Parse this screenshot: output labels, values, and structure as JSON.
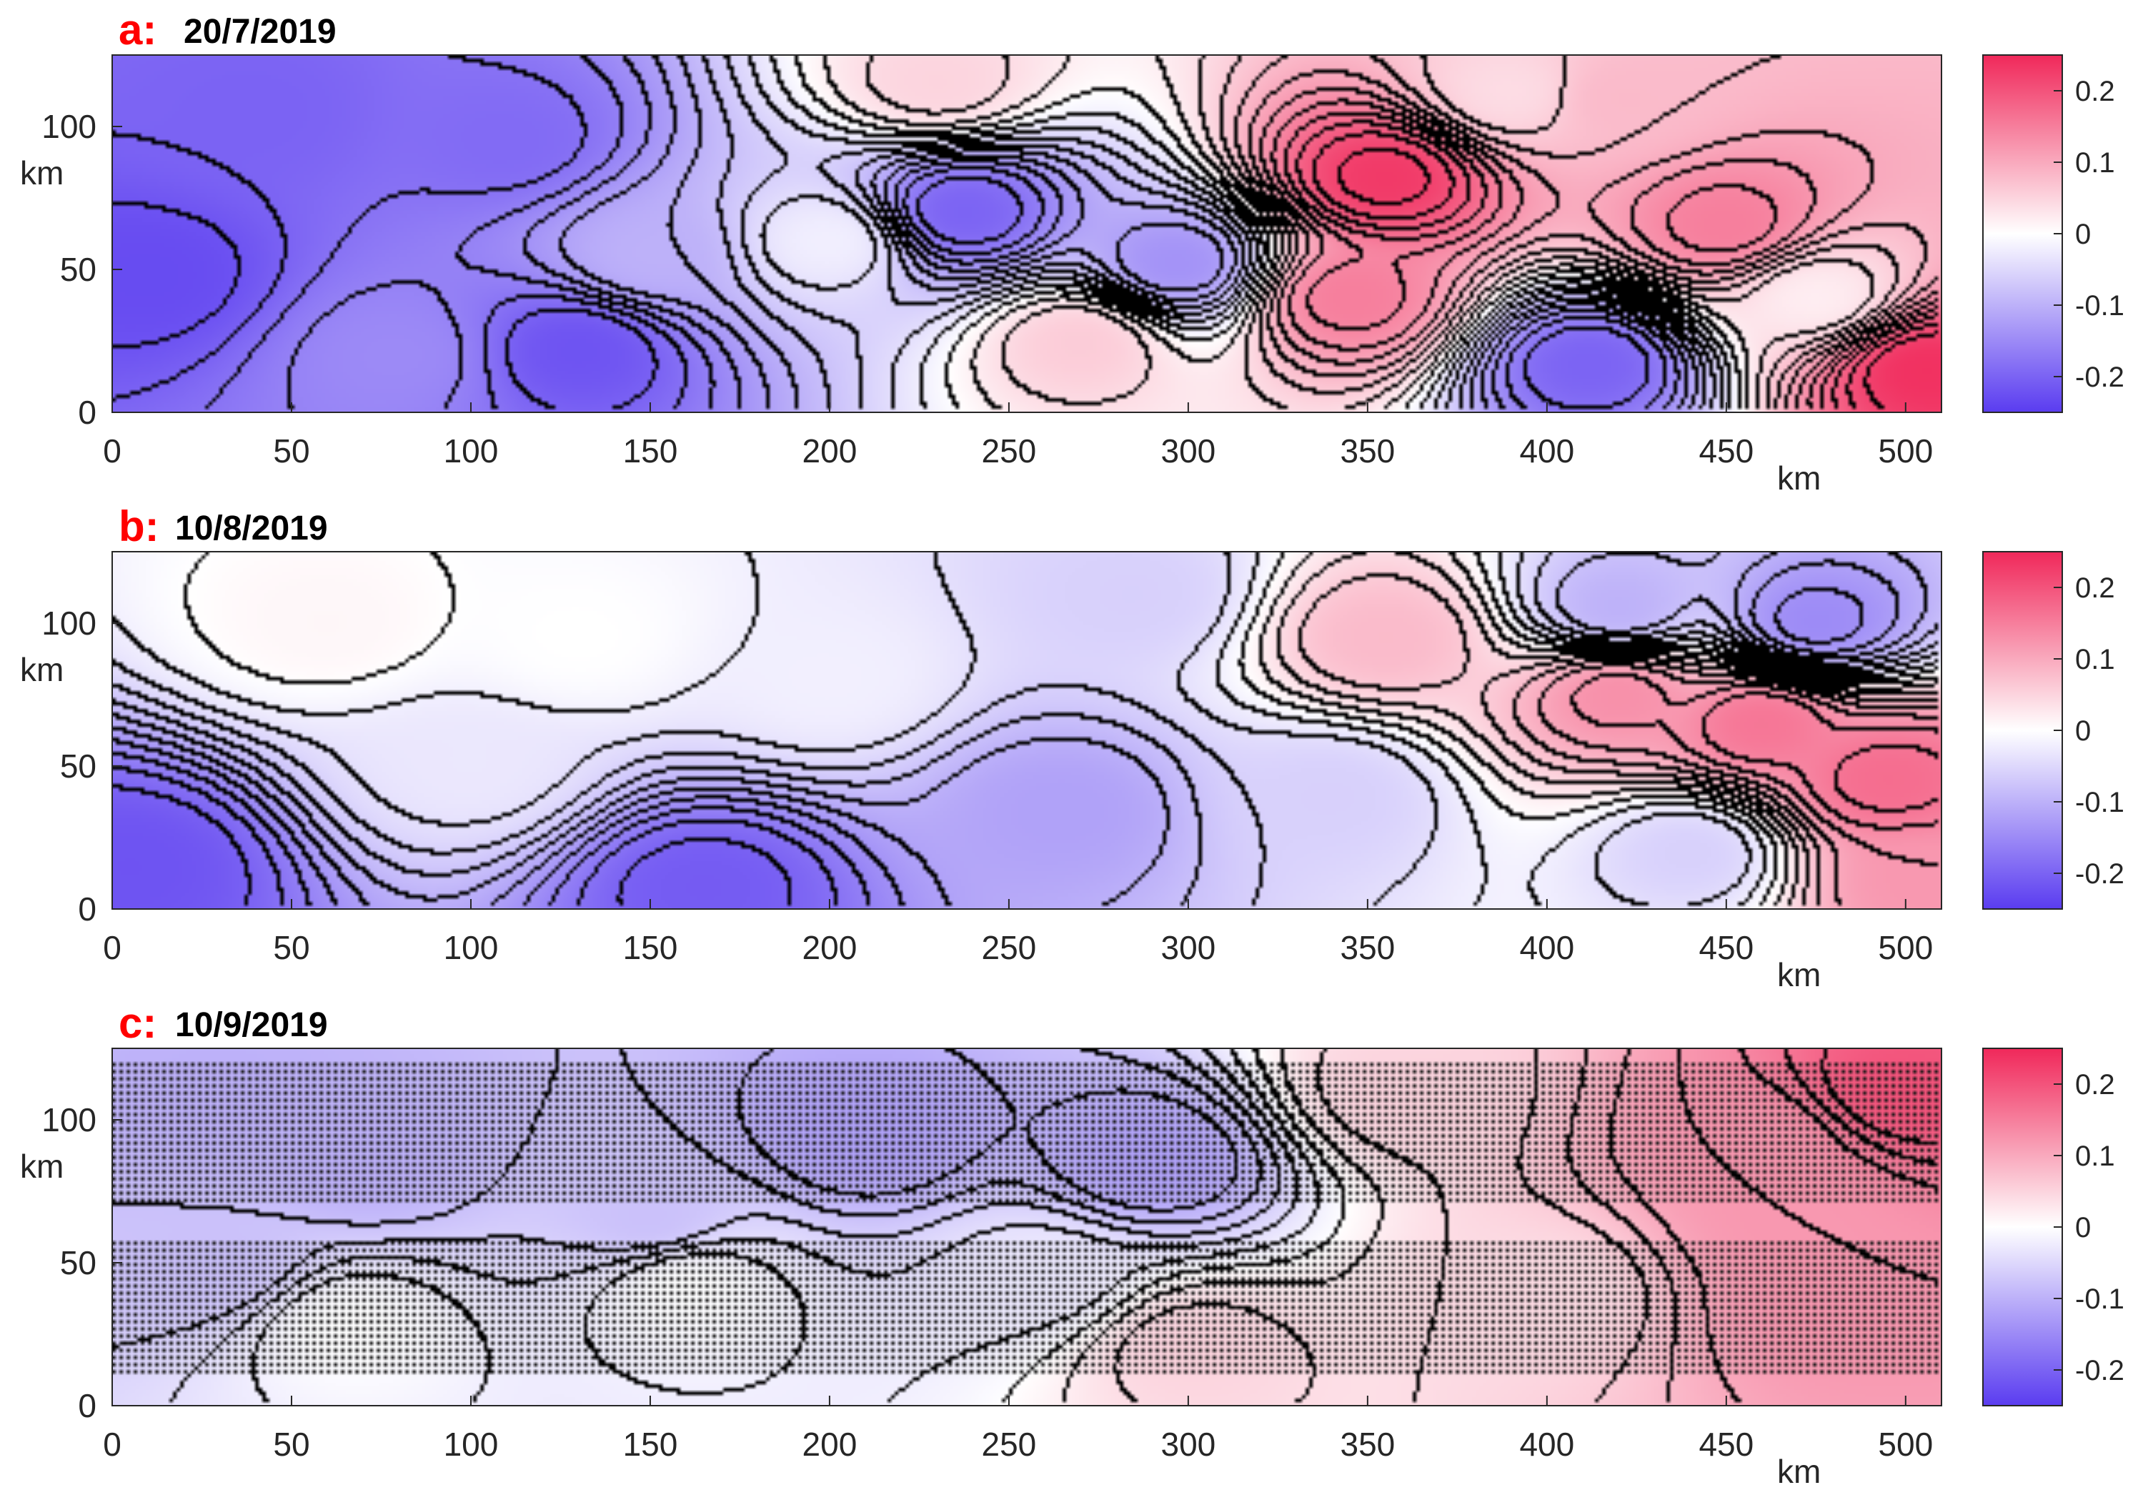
{
  "chart_data": [
    {
      "type": "heatmap",
      "panel_label": "a:",
      "title": "20/7/2019",
      "x_ticks": [
        0,
        50,
        100,
        150,
        200,
        250,
        300,
        350,
        400,
        450,
        500
      ],
      "x_unit": "km",
      "xlim": [
        0,
        510
      ],
      "y_ticks": [
        0,
        50,
        100
      ],
      "y_unit": "km",
      "ylim": [
        0,
        125
      ],
      "colorbar": {
        "ticks": [
          "0.2",
          "0.1",
          "0",
          "-0.1",
          "-0.2"
        ],
        "range": [
          -0.25,
          0.25
        ],
        "low_color": "#5a3cf0",
        "mid_color": "#ffffff",
        "high_color": "#f0285a"
      },
      "contours": true,
      "stippling": false,
      "features": [
        {
          "x": 10,
          "y": 48,
          "value": -0.23
        },
        {
          "x": 40,
          "y": 105,
          "value": -0.2
        },
        {
          "x": 110,
          "y": 95,
          "value": -0.19
        },
        {
          "x": 130,
          "y": 22,
          "value": -0.22
        },
        {
          "x": 150,
          "y": 55,
          "value": -0.1
        },
        {
          "x": 80,
          "y": 20,
          "value": -0.15
        },
        {
          "x": 200,
          "y": 60,
          "value": -0.02
        },
        {
          "x": 237,
          "y": 70,
          "value": -0.2
        },
        {
          "x": 297,
          "y": 52,
          "value": -0.14
        },
        {
          "x": 230,
          "y": 115,
          "value": 0.05
        },
        {
          "x": 270,
          "y": 25,
          "value": 0.06
        },
        {
          "x": 355,
          "y": 82,
          "value": 0.23
        },
        {
          "x": 345,
          "y": 40,
          "value": 0.15
        },
        {
          "x": 412,
          "y": 17,
          "value": -0.2
        },
        {
          "x": 450,
          "y": 65,
          "value": 0.15
        },
        {
          "x": 475,
          "y": 40,
          "value": 0.02
        },
        {
          "x": 505,
          "y": 15,
          "value": 0.24
        },
        {
          "x": 420,
          "y": 110,
          "value": 0.08
        },
        {
          "x": 390,
          "y": 112,
          "value": 0.04
        }
      ]
    },
    {
      "type": "heatmap",
      "panel_label": "b:",
      "title": "10/8/2019",
      "x_ticks": [
        0,
        50,
        100,
        150,
        200,
        250,
        300,
        350,
        400,
        450,
        500
      ],
      "x_unit": "km",
      "xlim": [
        0,
        510
      ],
      "y_ticks": [
        0,
        50,
        100
      ],
      "y_unit": "km",
      "ylim": [
        0,
        125
      ],
      "colorbar": {
        "ticks": [
          "0.2",
          "0.1",
          "0",
          "-0.1",
          "-0.2"
        ],
        "range": [
          -0.25,
          0.25
        ],
        "low_color": "#5a3cf0",
        "mid_color": "#ffffff",
        "high_color": "#f0285a"
      },
      "contours": true,
      "stippling": false,
      "features": [
        {
          "x": 5,
          "y": 15,
          "value": -0.22
        },
        {
          "x": 165,
          "y": 8,
          "value": -0.21
        },
        {
          "x": 100,
          "y": 50,
          "value": -0.03
        },
        {
          "x": 130,
          "y": 95,
          "value": 0.0
        },
        {
          "x": 60,
          "y": 100,
          "value": 0.01
        },
        {
          "x": 265,
          "y": 35,
          "value": -0.12
        },
        {
          "x": 285,
          "y": 110,
          "value": -0.06
        },
        {
          "x": 200,
          "y": 80,
          "value": -0.02
        },
        {
          "x": 355,
          "y": 95,
          "value": 0.08
        },
        {
          "x": 340,
          "y": 40,
          "value": -0.06
        },
        {
          "x": 420,
          "y": 75,
          "value": 0.13
        },
        {
          "x": 460,
          "y": 65,
          "value": 0.16
        },
        {
          "x": 495,
          "y": 45,
          "value": 0.17
        },
        {
          "x": 420,
          "y": 105,
          "value": -0.1
        },
        {
          "x": 475,
          "y": 100,
          "value": -0.15
        },
        {
          "x": 440,
          "y": 20,
          "value": -0.06
        },
        {
          "x": 505,
          "y": 10,
          "value": 0.12
        }
      ]
    },
    {
      "type": "heatmap",
      "panel_label": "c:",
      "title": "10/9/2019",
      "x_ticks": [
        0,
        50,
        100,
        150,
        200,
        250,
        300,
        350,
        400,
        450,
        500
      ],
      "x_unit": "km",
      "xlim": [
        0,
        510
      ],
      "y_ticks": [
        0,
        50,
        100
      ],
      "y_unit": "km",
      "ylim": [
        0,
        125
      ],
      "colorbar": {
        "ticks": [
          "0.2",
          "0.1",
          "0",
          "-0.1",
          "-0.2"
        ],
        "range": [
          -0.25,
          0.25
        ],
        "low_color": "#5a3cf0",
        "mid_color": "#ffffff",
        "high_color": "#f0285a"
      },
      "contours": true,
      "stippling": true,
      "stipple_bands_y": [
        [
          10,
          57
        ],
        [
          70,
          120
        ]
      ],
      "features": [
        {
          "x": 70,
          "y": 85,
          "value": -0.1
        },
        {
          "x": 210,
          "y": 95,
          "value": -0.12
        },
        {
          "x": 290,
          "y": 85,
          "value": -0.12
        },
        {
          "x": 30,
          "y": 110,
          "value": -0.1
        },
        {
          "x": 150,
          "y": 65,
          "value": -0.08
        },
        {
          "x": 65,
          "y": 28,
          "value": 0.0
        },
        {
          "x": 160,
          "y": 42,
          "value": 0.0
        },
        {
          "x": 30,
          "y": 50,
          "value": -0.08
        },
        {
          "x": 300,
          "y": 20,
          "value": 0.05
        },
        {
          "x": 260,
          "y": 45,
          "value": -0.03
        },
        {
          "x": 360,
          "y": 110,
          "value": 0.05
        },
        {
          "x": 400,
          "y": 40,
          "value": 0.04
        },
        {
          "x": 460,
          "y": 90,
          "value": 0.12
        },
        {
          "x": 500,
          "y": 110,
          "value": 0.2
        },
        {
          "x": 480,
          "y": 35,
          "value": 0.12
        },
        {
          "x": 470,
          "y": 65,
          "value": 0.12
        }
      ]
    }
  ]
}
